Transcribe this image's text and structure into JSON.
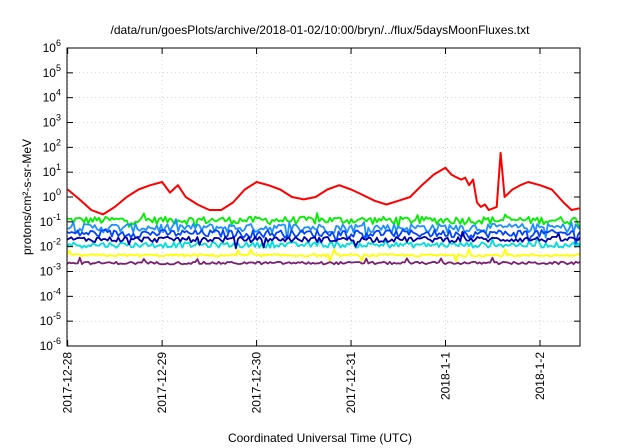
{
  "chart_data": {
    "type": "line",
    "title": "/data/run/goesPlots/archive/2018-01-02/10:00/bryn/../flux/5daysMoonFluxes.txt",
    "xlabel": "Coordinated Universal Time (UTC)",
    "ylabel": "protons/cm²-s-sr-MeV",
    "y_scale": "log",
    "ylim": [
      1e-06,
      1000000.0
    ],
    "xlim": [
      "2017-12-27T23:50",
      "2018-01-02T10:10"
    ],
    "grid": true,
    "legend": "none",
    "y_ticks": [
      {
        "value": 1e-06,
        "base": "10",
        "exp": "-6"
      },
      {
        "value": 1e-05,
        "base": "10",
        "exp": "-5"
      },
      {
        "value": 0.0001,
        "base": "10",
        "exp": "-4"
      },
      {
        "value": 0.001,
        "base": "10",
        "exp": "-3"
      },
      {
        "value": 0.01,
        "base": "10",
        "exp": "-2"
      },
      {
        "value": 0.1,
        "base": "10",
        "exp": "-1"
      },
      {
        "value": 1,
        "base": "10",
        "exp": "0"
      },
      {
        "value": 10,
        "base": "10",
        "exp": "1"
      },
      {
        "value": 100,
        "base": "10",
        "exp": "2"
      },
      {
        "value": 1000,
        "base": "10",
        "exp": "3"
      },
      {
        "value": 10000,
        "base": "10",
        "exp": "4"
      },
      {
        "value": 100000,
        "base": "10",
        "exp": "5"
      },
      {
        "value": 1000000,
        "base": "10",
        "exp": "6"
      }
    ],
    "x_ticks": [
      {
        "label": "2017-12-28",
        "t": "2017-12-28T00:00"
      },
      {
        "label": "2017-12-29",
        "t": "2017-12-29T00:00"
      },
      {
        "label": "2017-12-30",
        "t": "2017-12-30T00:00"
      },
      {
        "label": "2017-12-31",
        "t": "2017-12-31T00:00"
      },
      {
        "label": "2018-1-1",
        "t": "2018-01-01T00:00"
      },
      {
        "label": "2018-1-2",
        "t": "2018-01-02T00:00"
      }
    ],
    "series": [
      {
        "color": "#ff0000",
        "points": [
          [
            "2017-12-28T00:00",
            2.0
          ],
          [
            "2017-12-28T03:00",
            0.8
          ],
          [
            "2017-12-28T06:00",
            0.3
          ],
          [
            "2017-12-28T09:00",
            0.2
          ],
          [
            "2017-12-28T12:00",
            0.4
          ],
          [
            "2017-12-28T15:00",
            1.0
          ],
          [
            "2017-12-28T18:00",
            2.0
          ],
          [
            "2017-12-28T21:00",
            3.0
          ],
          [
            "2017-12-29T00:00",
            4.0
          ],
          [
            "2017-12-29T02:00",
            1.5
          ],
          [
            "2017-12-29T04:00",
            3.0
          ],
          [
            "2017-12-29T06:00",
            1.0
          ],
          [
            "2017-12-29T09:00",
            0.5
          ],
          [
            "2017-12-29T12:00",
            0.3
          ],
          [
            "2017-12-29T15:00",
            0.3
          ],
          [
            "2017-12-29T18:00",
            0.6
          ],
          [
            "2017-12-29T21:00",
            2.0
          ],
          [
            "2017-12-30T00:00",
            4.0
          ],
          [
            "2017-12-30T03:00",
            3.0
          ],
          [
            "2017-12-30T06:00",
            2.0
          ],
          [
            "2017-12-30T09:00",
            1.0
          ],
          [
            "2017-12-30T12:00",
            0.8
          ],
          [
            "2017-12-30T15:00",
            1.0
          ],
          [
            "2017-12-30T18:00",
            2.0
          ],
          [
            "2017-12-30T21:00",
            3.0
          ],
          [
            "2017-12-31T00:00",
            2.0
          ],
          [
            "2017-12-31T03:00",
            1.2
          ],
          [
            "2017-12-31T06:00",
            0.7
          ],
          [
            "2017-12-31T09:00",
            0.5
          ],
          [
            "2017-12-31T12:00",
            0.7
          ],
          [
            "2017-12-31T15:00",
            1.0
          ],
          [
            "2017-12-31T18:00",
            3.0
          ],
          [
            "2017-12-31T21:00",
            8.0
          ],
          [
            "2018-01-01T00:00",
            15.0
          ],
          [
            "2018-01-01T01:30",
            8.0
          ],
          [
            "2018-01-01T03:00",
            6.0
          ],
          [
            "2018-01-01T04:00",
            5.0
          ],
          [
            "2018-01-01T05:00",
            6.0
          ],
          [
            "2018-01-01T06:00",
            3.0
          ],
          [
            "2018-01-01T07:00",
            5.0
          ],
          [
            "2018-01-01T08:00",
            0.6
          ],
          [
            "2018-01-01T09:00",
            0.4
          ],
          [
            "2018-01-01T10:00",
            0.5
          ],
          [
            "2018-01-01T11:00",
            0.3
          ],
          [
            "2018-01-01T13:00",
            0.4
          ],
          [
            "2018-01-01T14:00",
            60.0
          ],
          [
            "2018-01-01T15:00",
            1.0
          ],
          [
            "2018-01-01T17:00",
            2.0
          ],
          [
            "2018-01-01T19:00",
            3.0
          ],
          [
            "2018-01-01T21:00",
            4.0
          ],
          [
            "2018-01-02T00:00",
            3.0
          ],
          [
            "2018-01-02T03:00",
            2.0
          ],
          [
            "2018-01-02T06:00",
            0.6
          ],
          [
            "2018-01-02T08:00",
            0.3
          ],
          [
            "2018-01-02T10:00",
            0.35
          ]
        ]
      },
      {
        "color": "#00ee00",
        "base": 0.12,
        "noise": 0.35
      },
      {
        "color": "#1e90ff",
        "base": 0.06,
        "noise": 0.4
      },
      {
        "color": "#0044ff",
        "base": 0.035,
        "noise": 0.35
      },
      {
        "color": "#00dddd",
        "base": 0.012,
        "noise": 0.25
      },
      {
        "color": "#0000aa",
        "base": 0.02,
        "noise": 0.25
      },
      {
        "color": "#ffff00",
        "base": 0.0045,
        "noise": 0.12
      },
      {
        "color": "#7a2070",
        "base": 0.0022,
        "noise": 0.12
      }
    ]
  }
}
